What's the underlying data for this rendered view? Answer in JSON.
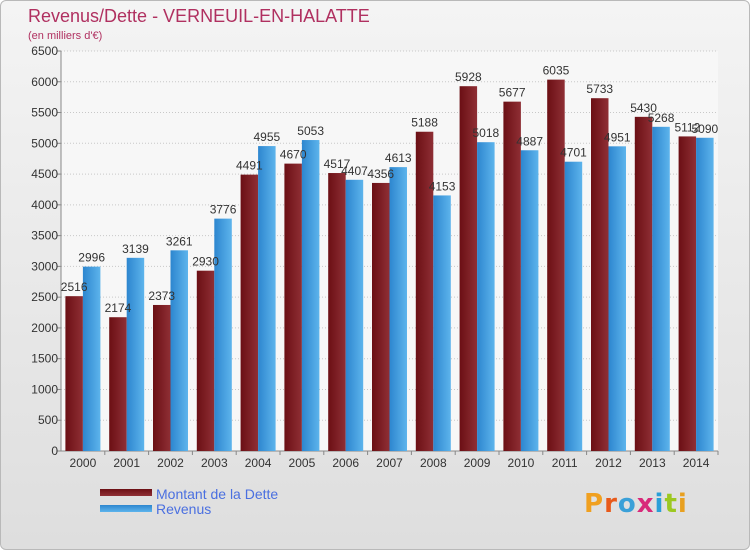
{
  "colors": {
    "debt_dark": "#6b0f14",
    "debt_light": "#8f2f35",
    "revenue_dark": "#2d86cf",
    "revenue_light": "#5db4ec",
    "title": "#b03060",
    "legend_text": "#4a6fe0"
  },
  "chart_data": {
    "type": "bar",
    "title": "Revenus/Dette - VERNEUIL-EN-HALATTE",
    "subtitle": "(en milliers d'€)",
    "categories": [
      "2000",
      "2001",
      "2002",
      "2003",
      "2004",
      "2005",
      "2006",
      "2007",
      "2008",
      "2009",
      "2010",
      "2011",
      "2012",
      "2013",
      "2014"
    ],
    "series": [
      {
        "name": "Montant de la Dette",
        "values": [
          2516,
          2174,
          2373,
          2930,
          4491,
          4670,
          4517,
          4356,
          5188,
          5928,
          5677,
          6035,
          5733,
          5430,
          5112
        ]
      },
      {
        "name": "Revenus",
        "values": [
          2996,
          3139,
          3261,
          3776,
          4955,
          5053,
          4407,
          4613,
          4153,
          5018,
          4887,
          4701,
          4951,
          5268,
          5090
        ]
      }
    ],
    "ylim": [
      0,
      6500
    ],
    "yticks": [
      0,
      500,
      1000,
      1500,
      2000,
      2500,
      3000,
      3500,
      4000,
      4500,
      5000,
      5500,
      6000,
      6500
    ],
    "grid": true,
    "legend": "bottom-left"
  },
  "brand": {
    "text": "Proxiti"
  }
}
